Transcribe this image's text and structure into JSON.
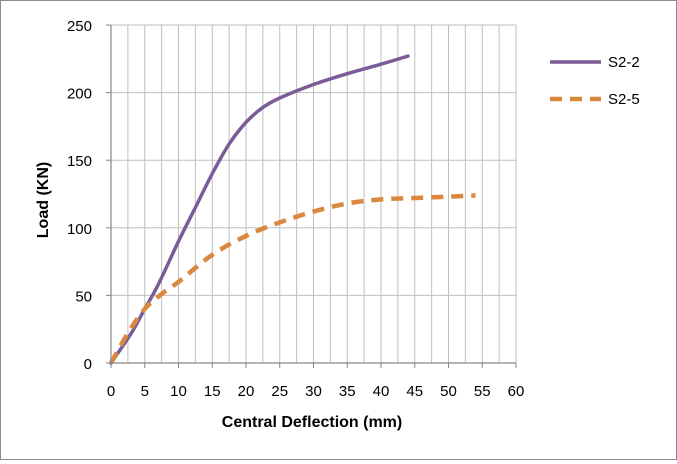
{
  "chart_data": {
    "type": "line",
    "title": "",
    "xlabel": "Central Deflection (mm)",
    "ylabel": "Load (KN)",
    "xlim": [
      0,
      60
    ],
    "ylim": [
      0,
      250
    ],
    "xticks": [
      0,
      5,
      10,
      15,
      20,
      25,
      30,
      35,
      40,
      45,
      50,
      55,
      60
    ],
    "yticks": [
      0,
      50,
      100,
      150,
      200,
      250
    ],
    "xtick_labels": [
      "0",
      "5",
      "10",
      "15",
      "20",
      "25",
      "30",
      "35",
      "40",
      "45",
      "50",
      "55",
      "60"
    ],
    "ytick_labels": [
      "0",
      "50",
      "100",
      "150",
      "200",
      "250"
    ],
    "grid": true,
    "minor_x_grid_step": 2.5,
    "legend_position": "right",
    "series": [
      {
        "name": "S2-2",
        "color": "#7a5c99",
        "style": "solid",
        "x": [
          0,
          3,
          5,
          7,
          10,
          12.5,
          15,
          17.5,
          20,
          22.5,
          25,
          30,
          35,
          40,
          44
        ],
        "y": [
          0,
          22,
          40,
          58,
          90,
          115,
          140,
          162,
          178,
          189,
          196,
          206,
          214,
          221,
          227
        ]
      },
      {
        "name": "S2-5",
        "color": "#d9883e",
        "style": "dashed",
        "x": [
          0,
          2.5,
          5,
          7.5,
          10,
          15,
          20,
          25,
          30,
          35,
          40,
          45,
          50,
          54
        ],
        "y": [
          0,
          22,
          40,
          51,
          60,
          80,
          94,
          104,
          112,
          118,
          121,
          122,
          123,
          124
        ]
      }
    ]
  }
}
